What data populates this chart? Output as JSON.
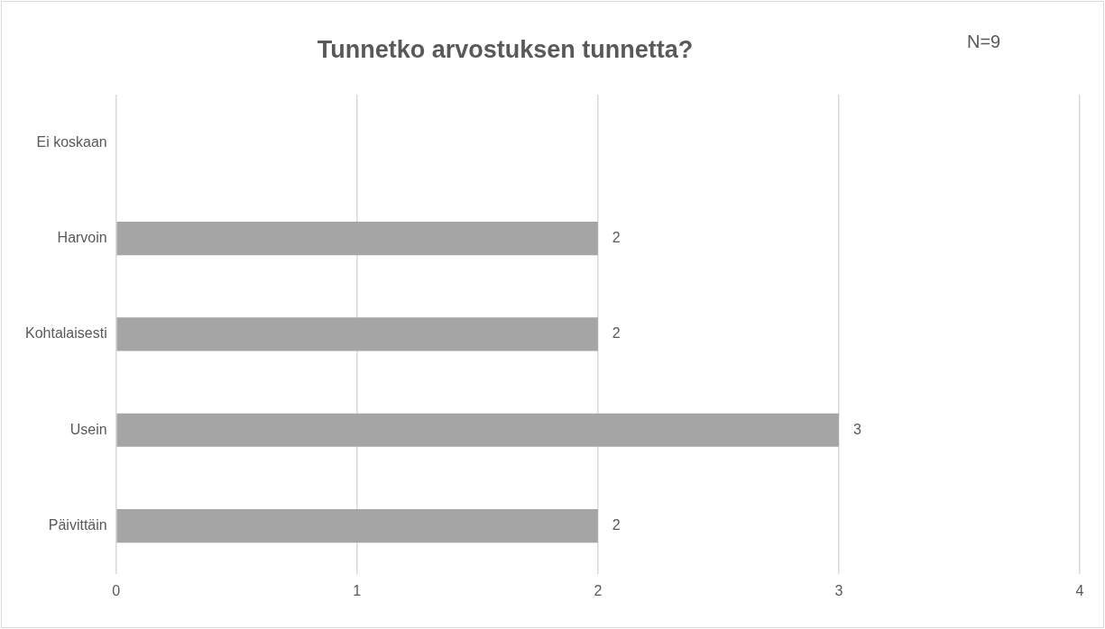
{
  "chart_data": {
    "type": "bar",
    "orientation": "horizontal",
    "title": "Tunnetko arvostuksen tunnetta?",
    "annotations": [
      "N=9"
    ],
    "categories": [
      "Ei koskaan",
      "Harvoin",
      "Kohtalaisesti",
      "Usein",
      "Päivittäin"
    ],
    "values": [
      0,
      2,
      2,
      3,
      2
    ],
    "value_labels": [
      null,
      "2",
      "2",
      "3",
      "2"
    ],
    "color": "#a5a5a5",
    "xlim": [
      0,
      4
    ],
    "xticks": [
      0,
      1,
      2,
      3,
      4
    ],
    "grid": "x",
    "legend": false
  }
}
